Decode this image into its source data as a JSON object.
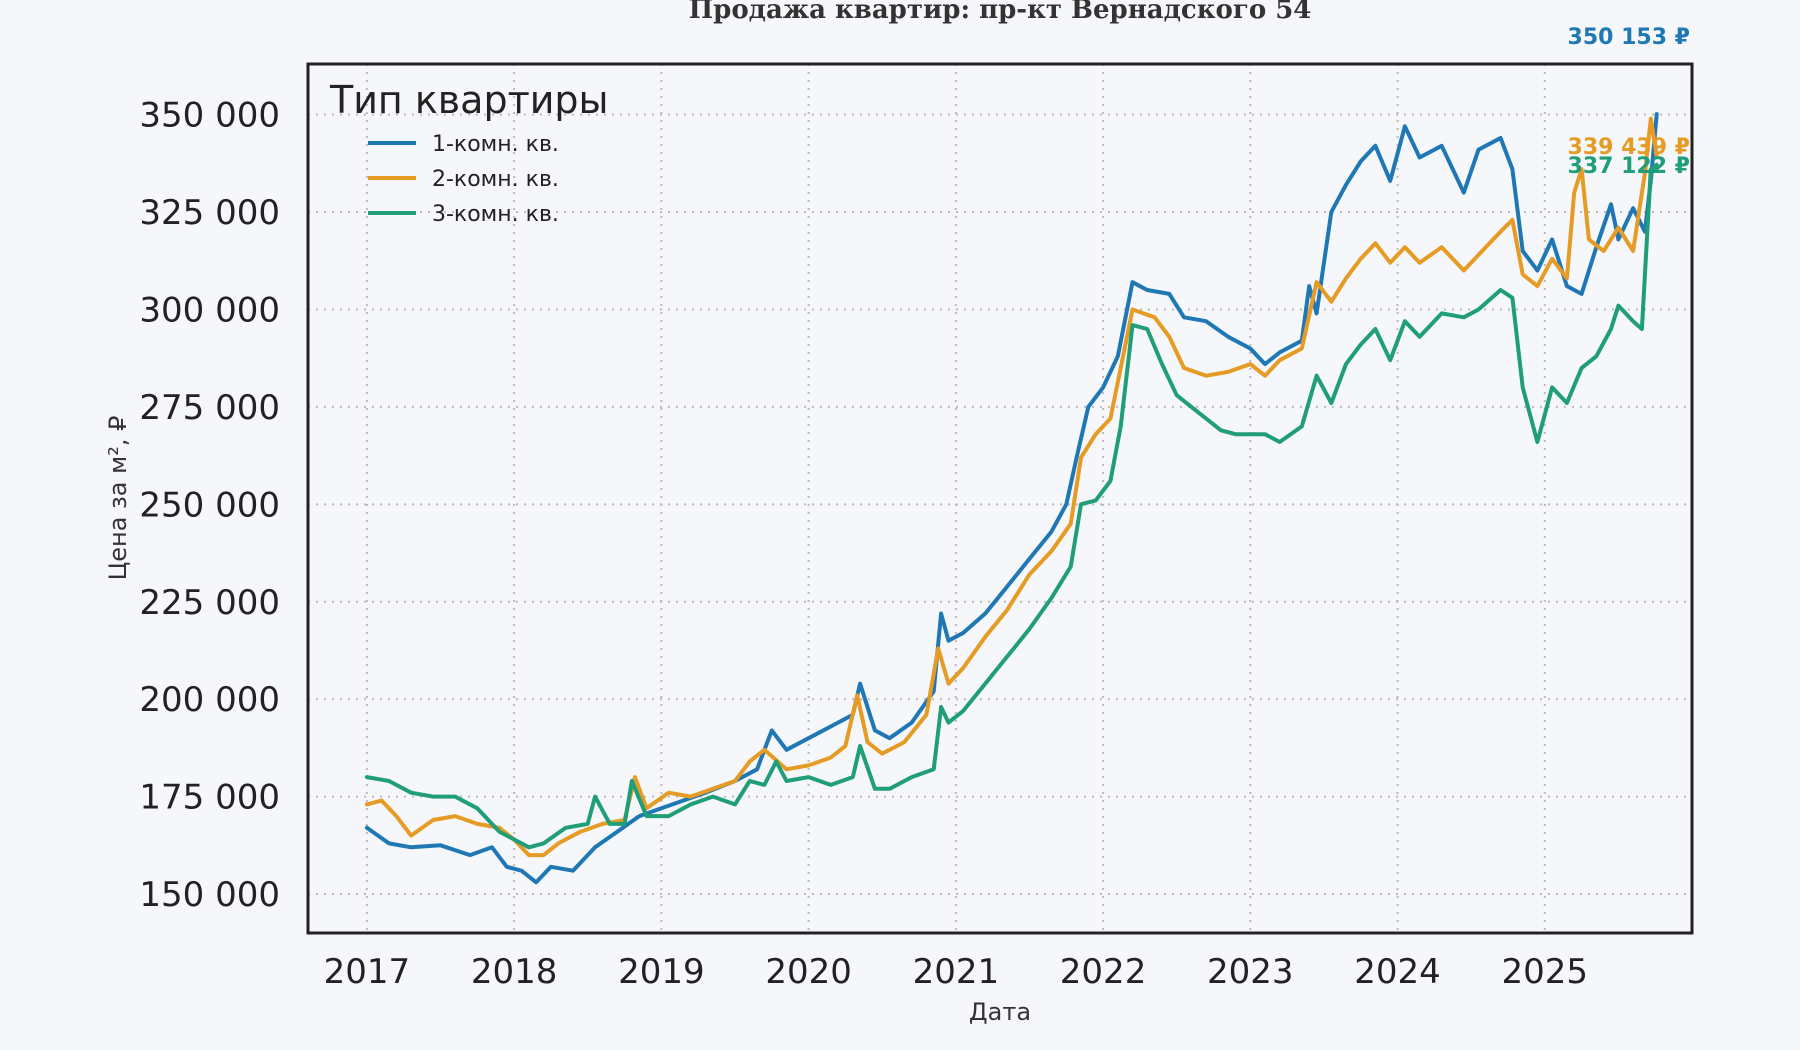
{
  "chart_data": {
    "type": "line",
    "title": "Продажа квартир: пр-кт Вернадского 54",
    "xlabel": "Дата",
    "ylabel": "Цена за м², ₽",
    "xlim": [
      2016.6,
      2026.0
    ],
    "ylim": [
      140000,
      363000
    ],
    "x_ticks": [
      2017,
      2018,
      2019,
      2020,
      2021,
      2022,
      2023,
      2024,
      2025
    ],
    "x_tick_labels": [
      "2017",
      "2018",
      "2019",
      "2020",
      "2021",
      "2022",
      "2023",
      "2024",
      "2025"
    ],
    "y_ticks": [
      150000,
      175000,
      200000,
      225000,
      250000,
      275000,
      300000,
      325000,
      350000
    ],
    "y_tick_labels": [
      "150 000",
      "175 000",
      "200 000",
      "225 000",
      "250 000",
      "275 000",
      "300 000",
      "325 000",
      "350 000"
    ],
    "grid": true,
    "legend": {
      "title": "Тип квартиры",
      "position": "top-left"
    },
    "series": [
      {
        "name": "1-комн. кв.",
        "color": "#1f77b4",
        "end_label": "350 153 ₽",
        "points": [
          [
            2017.0,
            167000
          ],
          [
            2017.15,
            163000
          ],
          [
            2017.3,
            162000
          ],
          [
            2017.5,
            162500
          ],
          [
            2017.7,
            160000
          ],
          [
            2017.85,
            162000
          ],
          [
            2017.95,
            157000
          ],
          [
            2018.05,
            156000
          ],
          [
            2018.15,
            153000
          ],
          [
            2018.25,
            157000
          ],
          [
            2018.4,
            156000
          ],
          [
            2018.55,
            162000
          ],
          [
            2018.7,
            166000
          ],
          [
            2018.85,
            170000
          ],
          [
            2019.0,
            172000
          ],
          [
            2019.15,
            174000
          ],
          [
            2019.3,
            176000
          ],
          [
            2019.5,
            179000
          ],
          [
            2019.65,
            182000
          ],
          [
            2019.75,
            192000
          ],
          [
            2019.85,
            187000
          ],
          [
            2020.0,
            190000
          ],
          [
            2020.15,
            193000
          ],
          [
            2020.3,
            196000
          ],
          [
            2020.35,
            204000
          ],
          [
            2020.45,
            192000
          ],
          [
            2020.55,
            190000
          ],
          [
            2020.7,
            194000
          ],
          [
            2020.85,
            202000
          ],
          [
            2020.9,
            222000
          ],
          [
            2020.95,
            215000
          ],
          [
            2021.05,
            217000
          ],
          [
            2021.2,
            222000
          ],
          [
            2021.35,
            229000
          ],
          [
            2021.5,
            236000
          ],
          [
            2021.65,
            243000
          ],
          [
            2021.75,
            250000
          ],
          [
            2021.82,
            262000
          ],
          [
            2021.9,
            275000
          ],
          [
            2022.0,
            280000
          ],
          [
            2022.1,
            288000
          ],
          [
            2022.2,
            307000
          ],
          [
            2022.3,
            305000
          ],
          [
            2022.45,
            304000
          ],
          [
            2022.55,
            298000
          ],
          [
            2022.7,
            297000
          ],
          [
            2022.85,
            293000
          ],
          [
            2023.0,
            290000
          ],
          [
            2023.1,
            286000
          ],
          [
            2023.2,
            289000
          ],
          [
            2023.35,
            292000
          ],
          [
            2023.4,
            306000
          ],
          [
            2023.45,
            299000
          ],
          [
            2023.55,
            325000
          ],
          [
            2023.65,
            332000
          ],
          [
            2023.75,
            338000
          ],
          [
            2023.85,
            342000
          ],
          [
            2023.95,
            333000
          ],
          [
            2024.05,
            347000
          ],
          [
            2024.15,
            339000
          ],
          [
            2024.3,
            342000
          ],
          [
            2024.45,
            330000
          ],
          [
            2024.55,
            341000
          ],
          [
            2024.7,
            344000
          ],
          [
            2024.78,
            336000
          ],
          [
            2024.85,
            315000
          ],
          [
            2024.95,
            310000
          ],
          [
            2025.05,
            318000
          ],
          [
            2025.15,
            306000
          ],
          [
            2025.25,
            304000
          ],
          [
            2025.35,
            316000
          ],
          [
            2025.45,
            327000
          ],
          [
            2025.5,
            318000
          ],
          [
            2025.6,
            326000
          ],
          [
            2025.68,
            320000
          ],
          [
            2025.72,
            333000
          ],
          [
            2025.76,
            350153
          ]
        ]
      },
      {
        "name": "2-комн. кв.",
        "color": "#e69b24",
        "end_label": "339 439 ₽",
        "points": [
          [
            2017.0,
            173000
          ],
          [
            2017.1,
            174000
          ],
          [
            2017.2,
            170000
          ],
          [
            2017.3,
            165000
          ],
          [
            2017.45,
            169000
          ],
          [
            2017.6,
            170000
          ],
          [
            2017.75,
            168000
          ],
          [
            2017.9,
            167000
          ],
          [
            2018.0,
            164000
          ],
          [
            2018.1,
            160000
          ],
          [
            2018.2,
            160000
          ],
          [
            2018.3,
            163000
          ],
          [
            2018.45,
            166000
          ],
          [
            2018.6,
            168000
          ],
          [
            2018.75,
            169000
          ],
          [
            2018.82,
            180000
          ],
          [
            2018.9,
            172000
          ],
          [
            2019.05,
            176000
          ],
          [
            2019.2,
            175000
          ],
          [
            2019.35,
            177000
          ],
          [
            2019.5,
            179000
          ],
          [
            2019.6,
            184000
          ],
          [
            2019.7,
            187000
          ],
          [
            2019.85,
            182000
          ],
          [
            2020.0,
            183000
          ],
          [
            2020.15,
            185000
          ],
          [
            2020.25,
            188000
          ],
          [
            2020.33,
            201000
          ],
          [
            2020.4,
            189000
          ],
          [
            2020.5,
            186000
          ],
          [
            2020.65,
            189000
          ],
          [
            2020.8,
            196000
          ],
          [
            2020.88,
            213000
          ],
          [
            2020.95,
            204000
          ],
          [
            2021.05,
            208000
          ],
          [
            2021.2,
            216000
          ],
          [
            2021.35,
            223000
          ],
          [
            2021.5,
            232000
          ],
          [
            2021.65,
            238000
          ],
          [
            2021.78,
            245000
          ],
          [
            2021.85,
            262000
          ],
          [
            2021.95,
            268000
          ],
          [
            2022.05,
            272000
          ],
          [
            2022.12,
            285000
          ],
          [
            2022.2,
            300000
          ],
          [
            2022.35,
            298000
          ],
          [
            2022.45,
            293000
          ],
          [
            2022.55,
            285000
          ],
          [
            2022.7,
            283000
          ],
          [
            2022.85,
            284000
          ],
          [
            2023.0,
            286000
          ],
          [
            2023.1,
            283000
          ],
          [
            2023.2,
            287000
          ],
          [
            2023.35,
            290000
          ],
          [
            2023.45,
            307000
          ],
          [
            2023.55,
            302000
          ],
          [
            2023.65,
            308000
          ],
          [
            2023.75,
            313000
          ],
          [
            2023.85,
            317000
          ],
          [
            2023.95,
            312000
          ],
          [
            2024.05,
            316000
          ],
          [
            2024.15,
            312000
          ],
          [
            2024.3,
            316000
          ],
          [
            2024.45,
            310000
          ],
          [
            2024.55,
            314000
          ],
          [
            2024.7,
            320000
          ],
          [
            2024.78,
            323000
          ],
          [
            2024.85,
            309000
          ],
          [
            2024.95,
            306000
          ],
          [
            2025.05,
            313000
          ],
          [
            2025.15,
            308000
          ],
          [
            2025.2,
            330000
          ],
          [
            2025.25,
            336000
          ],
          [
            2025.3,
            318000
          ],
          [
            2025.4,
            315000
          ],
          [
            2025.5,
            321000
          ],
          [
            2025.6,
            315000
          ],
          [
            2025.68,
            335000
          ],
          [
            2025.72,
            349000
          ],
          [
            2025.76,
            339439
          ]
        ]
      },
      {
        "name": "3-комн. кв.",
        "color": "#1f9e77",
        "end_label": "337 122 ₽",
        "points": [
          [
            2017.0,
            180000
          ],
          [
            2017.15,
            179000
          ],
          [
            2017.3,
            176000
          ],
          [
            2017.45,
            175000
          ],
          [
            2017.6,
            175000
          ],
          [
            2017.75,
            172000
          ],
          [
            2017.9,
            166000
          ],
          [
            2018.0,
            164000
          ],
          [
            2018.1,
            162000
          ],
          [
            2018.2,
            163000
          ],
          [
            2018.35,
            167000
          ],
          [
            2018.5,
            168000
          ],
          [
            2018.55,
            175000
          ],
          [
            2018.65,
            168000
          ],
          [
            2018.75,
            168000
          ],
          [
            2018.8,
            179000
          ],
          [
            2018.9,
            170000
          ],
          [
            2019.05,
            170000
          ],
          [
            2019.2,
            173000
          ],
          [
            2019.35,
            175000
          ],
          [
            2019.5,
            173000
          ],
          [
            2019.6,
            179000
          ],
          [
            2019.7,
            178000
          ],
          [
            2019.78,
            184000
          ],
          [
            2019.85,
            179000
          ],
          [
            2020.0,
            180000
          ],
          [
            2020.15,
            178000
          ],
          [
            2020.3,
            180000
          ],
          [
            2020.35,
            188000
          ],
          [
            2020.45,
            177000
          ],
          [
            2020.55,
            177000
          ],
          [
            2020.7,
            180000
          ],
          [
            2020.85,
            182000
          ],
          [
            2020.9,
            198000
          ],
          [
            2020.95,
            194000
          ],
          [
            2021.05,
            197000
          ],
          [
            2021.2,
            204000
          ],
          [
            2021.35,
            211000
          ],
          [
            2021.5,
            218000
          ],
          [
            2021.65,
            226000
          ],
          [
            2021.78,
            234000
          ],
          [
            2021.85,
            250000
          ],
          [
            2021.95,
            251000
          ],
          [
            2022.05,
            256000
          ],
          [
            2022.12,
            270000
          ],
          [
            2022.2,
            296000
          ],
          [
            2022.3,
            295000
          ],
          [
            2022.4,
            286000
          ],
          [
            2022.5,
            278000
          ],
          [
            2022.6,
            275000
          ],
          [
            2022.7,
            272000
          ],
          [
            2022.8,
            269000
          ],
          [
            2022.9,
            268000
          ],
          [
            2023.0,
            268000
          ],
          [
            2023.1,
            268000
          ],
          [
            2023.2,
            266000
          ],
          [
            2023.35,
            270000
          ],
          [
            2023.45,
            283000
          ],
          [
            2023.55,
            276000
          ],
          [
            2023.65,
            286000
          ],
          [
            2023.75,
            291000
          ],
          [
            2023.85,
            295000
          ],
          [
            2023.95,
            287000
          ],
          [
            2024.05,
            297000
          ],
          [
            2024.15,
            293000
          ],
          [
            2024.3,
            299000
          ],
          [
            2024.45,
            298000
          ],
          [
            2024.55,
            300000
          ],
          [
            2024.7,
            305000
          ],
          [
            2024.78,
            303000
          ],
          [
            2024.85,
            280000
          ],
          [
            2024.95,
            266000
          ],
          [
            2025.05,
            280000
          ],
          [
            2025.15,
            276000
          ],
          [
            2025.25,
            285000
          ],
          [
            2025.35,
            288000
          ],
          [
            2025.45,
            295000
          ],
          [
            2025.5,
            301000
          ],
          [
            2025.6,
            297000
          ],
          [
            2025.66,
            295000
          ],
          [
            2025.72,
            336000
          ],
          [
            2025.76,
            337122
          ]
        ]
      }
    ]
  }
}
